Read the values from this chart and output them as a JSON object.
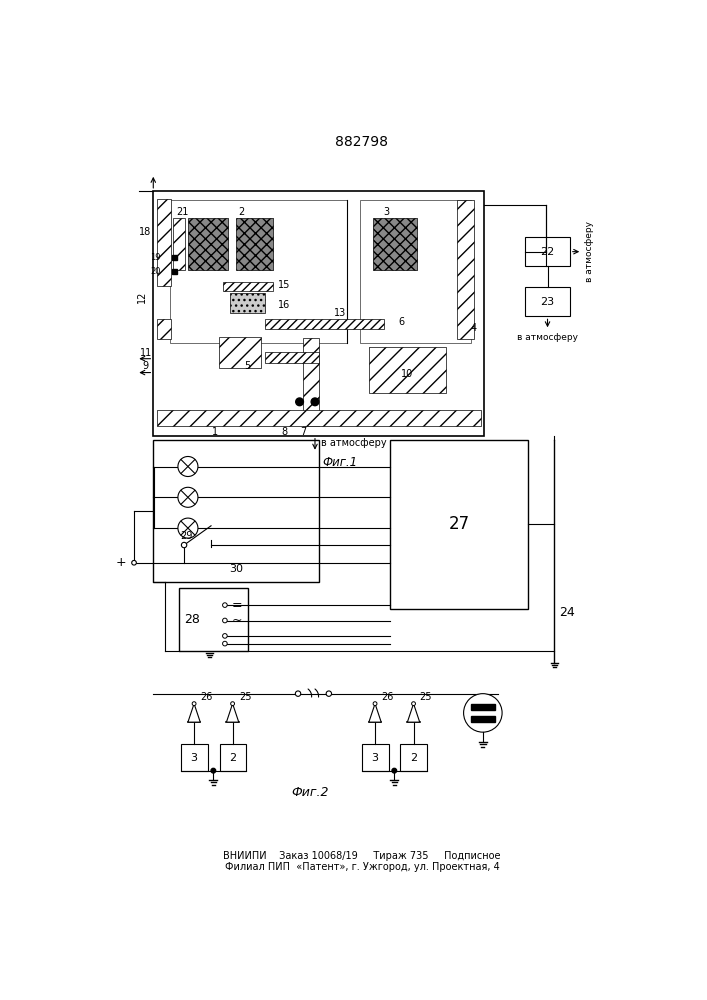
{
  "title": "882798",
  "bg_color": "#ffffff",
  "line_color": "#000000",
  "fig1_caption": "Фиг.1",
  "fig2_caption": "Фиг.2",
  "bottom_text1": "ВНИИПИ    Заказ 10068/19     Тираж 735     Подписное",
  "bottom_text2": "Филиал ПИП  «Патент», г. Ужгород, ул. Проектная, 4",
  "label_vatm1": "в атмосферу",
  "label_vatm2": "в атмосферу",
  "label_vatm3": "в атмосферу"
}
